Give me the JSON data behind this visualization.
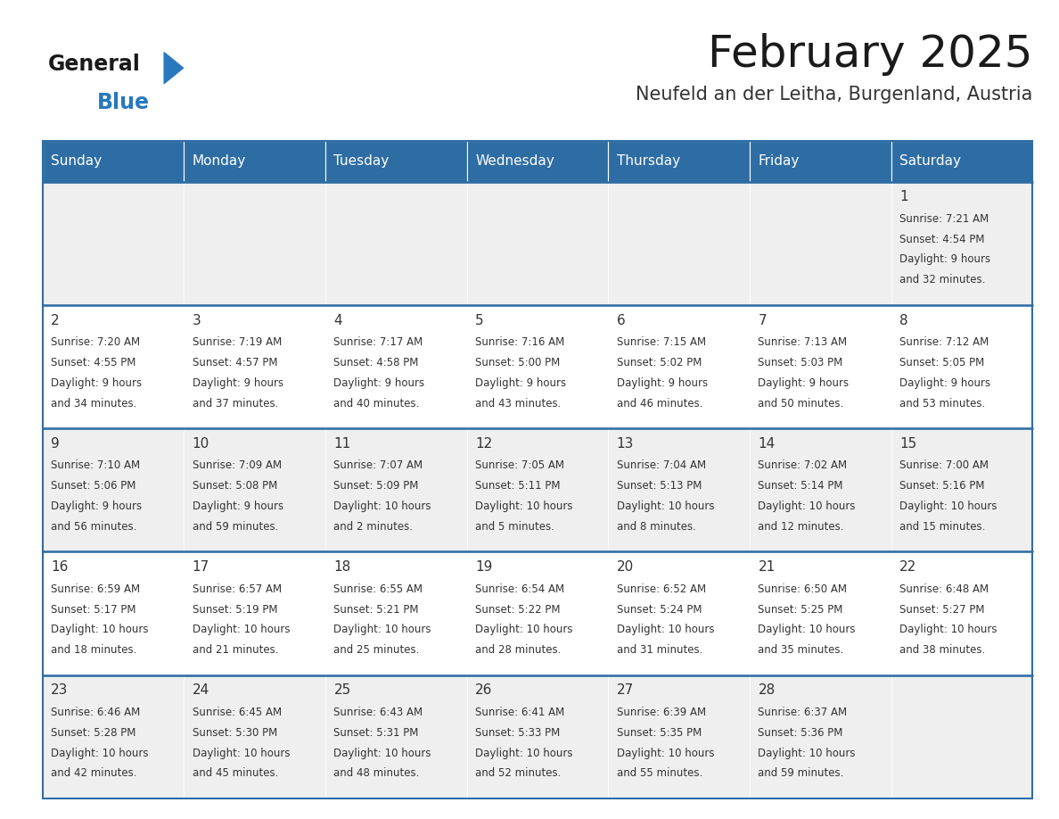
{
  "title": "February 2025",
  "subtitle": "Neufeld an der Leitha, Burgenland, Austria",
  "days_of_week": [
    "Sunday",
    "Monday",
    "Tuesday",
    "Wednesday",
    "Thursday",
    "Friday",
    "Saturday"
  ],
  "header_bg": "#2E6DA4",
  "header_text": "#FFFFFF",
  "cell_bg_odd": "#EFEFEF",
  "cell_bg_even": "#FFFFFF",
  "border_color": "#2E6DA4",
  "title_color": "#1a1a1a",
  "subtitle_color": "#333333",
  "day_num_color": "#333333",
  "cell_text_color": "#333333",
  "logo_general_color": "#1a1a1a",
  "logo_blue_color": "#2878BE",
  "calendar_data": {
    "1": {
      "sunrise": "7:21 AM",
      "sunset": "4:54 PM",
      "daylight_h": "9 hours",
      "daylight_m": "32 minutes."
    },
    "2": {
      "sunrise": "7:20 AM",
      "sunset": "4:55 PM",
      "daylight_h": "9 hours",
      "daylight_m": "34 minutes."
    },
    "3": {
      "sunrise": "7:19 AM",
      "sunset": "4:57 PM",
      "daylight_h": "9 hours",
      "daylight_m": "37 minutes."
    },
    "4": {
      "sunrise": "7:17 AM",
      "sunset": "4:58 PM",
      "daylight_h": "9 hours",
      "daylight_m": "40 minutes."
    },
    "5": {
      "sunrise": "7:16 AM",
      "sunset": "5:00 PM",
      "daylight_h": "9 hours",
      "daylight_m": "43 minutes."
    },
    "6": {
      "sunrise": "7:15 AM",
      "sunset": "5:02 PM",
      "daylight_h": "9 hours",
      "daylight_m": "46 minutes."
    },
    "7": {
      "sunrise": "7:13 AM",
      "sunset": "5:03 PM",
      "daylight_h": "9 hours",
      "daylight_m": "50 minutes."
    },
    "8": {
      "sunrise": "7:12 AM",
      "sunset": "5:05 PM",
      "daylight_h": "9 hours",
      "daylight_m": "53 minutes."
    },
    "9": {
      "sunrise": "7:10 AM",
      "sunset": "5:06 PM",
      "daylight_h": "9 hours",
      "daylight_m": "56 minutes."
    },
    "10": {
      "sunrise": "7:09 AM",
      "sunset": "5:08 PM",
      "daylight_h": "9 hours",
      "daylight_m": "59 minutes."
    },
    "11": {
      "sunrise": "7:07 AM",
      "sunset": "5:09 PM",
      "daylight_h": "10 hours",
      "daylight_m": "2 minutes."
    },
    "12": {
      "sunrise": "7:05 AM",
      "sunset": "5:11 PM",
      "daylight_h": "10 hours",
      "daylight_m": "5 minutes."
    },
    "13": {
      "sunrise": "7:04 AM",
      "sunset": "5:13 PM",
      "daylight_h": "10 hours",
      "daylight_m": "8 minutes."
    },
    "14": {
      "sunrise": "7:02 AM",
      "sunset": "5:14 PM",
      "daylight_h": "10 hours",
      "daylight_m": "12 minutes."
    },
    "15": {
      "sunrise": "7:00 AM",
      "sunset": "5:16 PM",
      "daylight_h": "10 hours",
      "daylight_m": "15 minutes."
    },
    "16": {
      "sunrise": "6:59 AM",
      "sunset": "5:17 PM",
      "daylight_h": "10 hours",
      "daylight_m": "18 minutes."
    },
    "17": {
      "sunrise": "6:57 AM",
      "sunset": "5:19 PM",
      "daylight_h": "10 hours",
      "daylight_m": "21 minutes."
    },
    "18": {
      "sunrise": "6:55 AM",
      "sunset": "5:21 PM",
      "daylight_h": "10 hours",
      "daylight_m": "25 minutes."
    },
    "19": {
      "sunrise": "6:54 AM",
      "sunset": "5:22 PM",
      "daylight_h": "10 hours",
      "daylight_m": "28 minutes."
    },
    "20": {
      "sunrise": "6:52 AM",
      "sunset": "5:24 PM",
      "daylight_h": "10 hours",
      "daylight_m": "31 minutes."
    },
    "21": {
      "sunrise": "6:50 AM",
      "sunset": "5:25 PM",
      "daylight_h": "10 hours",
      "daylight_m": "35 minutes."
    },
    "22": {
      "sunrise": "6:48 AM",
      "sunset": "5:27 PM",
      "daylight_h": "10 hours",
      "daylight_m": "38 minutes."
    },
    "23": {
      "sunrise": "6:46 AM",
      "sunset": "5:28 PM",
      "daylight_h": "10 hours",
      "daylight_m": "42 minutes."
    },
    "24": {
      "sunrise": "6:45 AM",
      "sunset": "5:30 PM",
      "daylight_h": "10 hours",
      "daylight_m": "45 minutes."
    },
    "25": {
      "sunrise": "6:43 AM",
      "sunset": "5:31 PM",
      "daylight_h": "10 hours",
      "daylight_m": "48 minutes."
    },
    "26": {
      "sunrise": "6:41 AM",
      "sunset": "5:33 PM",
      "daylight_h": "10 hours",
      "daylight_m": "52 minutes."
    },
    "27": {
      "sunrise": "6:39 AM",
      "sunset": "5:35 PM",
      "daylight_h": "10 hours",
      "daylight_m": "55 minutes."
    },
    "28": {
      "sunrise": "6:37 AM",
      "sunset": "5:36 PM",
      "daylight_h": "10 hours",
      "daylight_m": "59 minutes."
    }
  },
  "num_rows": 5,
  "num_cols": 7,
  "fig_width": 11.88,
  "fig_height": 9.18,
  "title_fontsize": 36,
  "subtitle_fontsize": 15,
  "header_fontsize": 11,
  "day_num_fontsize": 11,
  "cell_text_fontsize": 8.5
}
